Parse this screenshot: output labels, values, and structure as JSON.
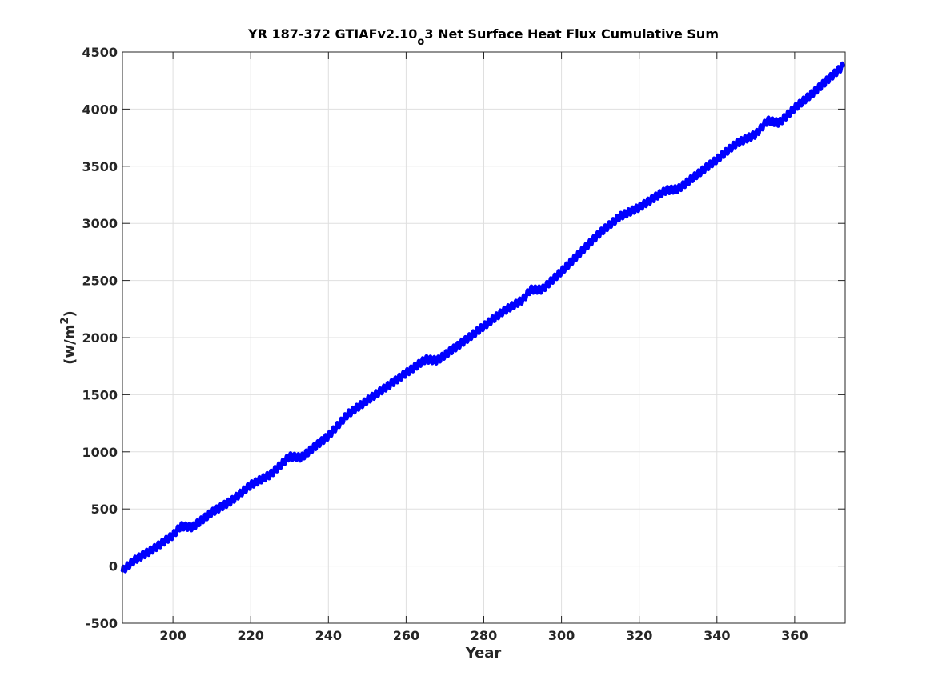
{
  "chart_data": {
    "type": "line",
    "title": {
      "main": "YR 187-372 GTIAFv2.10",
      "subscript": "o",
      "rest": "3 Net Surface Heat Flux  Cumulative Sum"
    },
    "xlabel": "Year",
    "ylabel": {
      "base": "(w/m",
      "superscript": "2",
      "close": ")"
    },
    "xlim": [
      187,
      373
    ],
    "ylim": [
      -500,
      4500
    ],
    "xticks": [
      200,
      220,
      240,
      260,
      280,
      300,
      320,
      340,
      360
    ],
    "yticks": [
      -500,
      0,
      500,
      1000,
      1500,
      2000,
      2500,
      3000,
      3500,
      4000,
      4500
    ],
    "grid": true,
    "series": [
      {
        "color": "#0000ff",
        "seasonal_amplitude": 30,
        "x": [
          187,
          190,
          195,
          200,
          202,
          205,
          210,
          215,
          220,
          225,
          230,
          233,
          240,
          245,
          250,
          255,
          260,
          265,
          268,
          275,
          280,
          285,
          290,
          292,
          295,
          300,
          305,
          310,
          315,
          320,
          325,
          327,
          330,
          335,
          340,
          345,
          350,
          353,
          356,
          360,
          365,
          372.5
        ],
        "y": [
          -40,
          50,
          150,
          270,
          350,
          340,
          470,
          570,
          710,
          800,
          960,
          950,
          1140,
          1330,
          1450,
          1570,
          1690,
          1810,
          1800,
          1970,
          2100,
          2230,
          2330,
          2420,
          2420,
          2580,
          2750,
          2920,
          3060,
          3140,
          3250,
          3290,
          3300,
          3430,
          3560,
          3700,
          3780,
          3900,
          3880,
          4010,
          4150,
          4380
        ]
      }
    ]
  }
}
